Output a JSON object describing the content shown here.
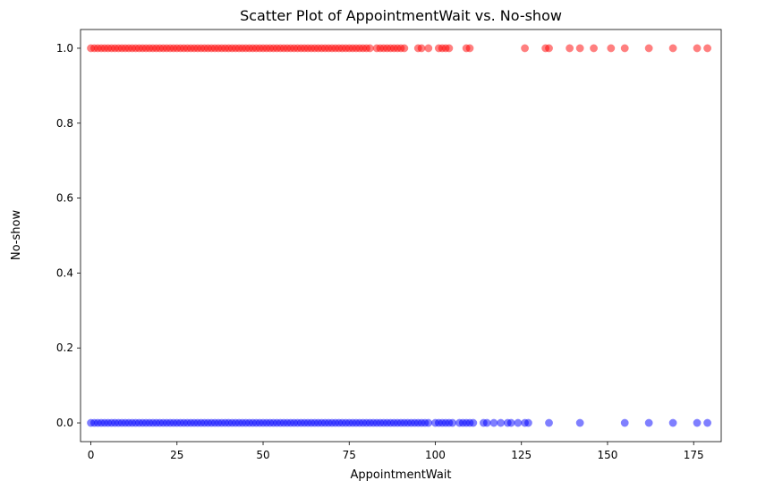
{
  "chart_data": {
    "type": "scatter",
    "title": "Scatter Plot of AppointmentWait vs. No-show",
    "xlabel": "AppointmentWait",
    "ylabel": "No-show",
    "xlim": [
      -3,
      183
    ],
    "ylim": [
      -0.05,
      1.05
    ],
    "xticks": [
      0,
      25,
      50,
      75,
      100,
      125,
      150,
      175
    ],
    "yticks": [
      0.0,
      0.2,
      0.4,
      0.6,
      0.8,
      1.0
    ],
    "xtick_labels": [
      "0",
      "25",
      "50",
      "75",
      "100",
      "125",
      "150",
      "175"
    ],
    "ytick_labels": [
      "0.0",
      "0.2",
      "0.4",
      "0.6",
      "0.8",
      "1.0"
    ],
    "grid": false,
    "marker_opacity": 0.5,
    "series": [
      {
        "color": "#ff0000",
        "y": 1,
        "x": [
          0,
          1,
          2,
          3,
          4,
          5,
          6,
          7,
          8,
          9,
          10,
          11,
          12,
          13,
          14,
          15,
          16,
          17,
          18,
          19,
          20,
          21,
          22,
          23,
          24,
          25,
          26,
          27,
          28,
          29,
          30,
          31,
          32,
          33,
          34,
          35,
          36,
          37,
          38,
          39,
          40,
          41,
          42,
          43,
          44,
          45,
          46,
          47,
          48,
          49,
          50,
          51,
          52,
          53,
          54,
          55,
          56,
          57,
          58,
          59,
          60,
          61,
          62,
          63,
          64,
          65,
          66,
          67,
          68,
          69,
          70,
          71,
          72,
          73,
          74,
          75,
          76,
          77,
          78,
          79,
          80,
          81,
          83,
          84,
          85,
          86,
          87,
          88,
          89,
          90,
          91,
          95,
          96,
          98,
          101,
          102,
          103,
          104,
          109,
          110,
          126,
          132,
          133,
          139,
          142,
          146,
          151,
          155,
          162,
          169,
          176,
          179
        ]
      },
      {
        "color": "#0000ff",
        "y": 0,
        "x": [
          0,
          1,
          2,
          3,
          4,
          5,
          6,
          7,
          8,
          9,
          10,
          11,
          12,
          13,
          14,
          15,
          16,
          17,
          18,
          19,
          20,
          21,
          22,
          23,
          24,
          25,
          26,
          27,
          28,
          29,
          30,
          31,
          32,
          33,
          34,
          35,
          36,
          37,
          38,
          39,
          40,
          41,
          42,
          43,
          44,
          45,
          46,
          47,
          48,
          49,
          50,
          51,
          52,
          53,
          54,
          55,
          56,
          57,
          58,
          59,
          60,
          61,
          62,
          63,
          64,
          65,
          66,
          67,
          68,
          69,
          70,
          71,
          72,
          73,
          74,
          75,
          76,
          77,
          78,
          79,
          80,
          81,
          82,
          83,
          84,
          85,
          86,
          87,
          88,
          89,
          90,
          91,
          92,
          93,
          94,
          95,
          96,
          97,
          98,
          100,
          101,
          102,
          103,
          104,
          105,
          107,
          108,
          109,
          110,
          111,
          114,
          115,
          117,
          119,
          121,
          122,
          124,
          126,
          127,
          133,
          142,
          155,
          162,
          169,
          176,
          179
        ]
      }
    ]
  }
}
